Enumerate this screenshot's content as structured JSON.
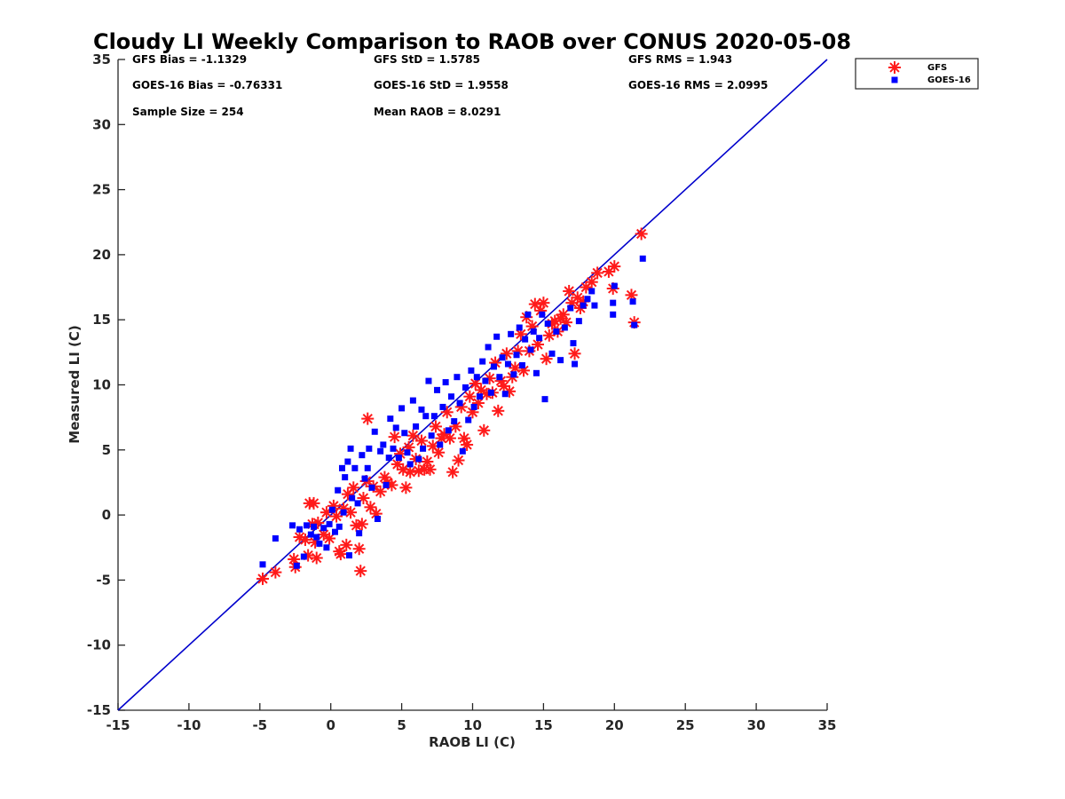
{
  "chart_data": {
    "type": "scatter",
    "title": "Cloudy LI Weekly Comparison to RAOB over CONUS 2020-05-08",
    "xlabel": "RAOB LI (C)",
    "ylabel": "Measured LI (C)",
    "xlim": [
      -15,
      35
    ],
    "ylim": [
      -15,
      35
    ],
    "xticks": [
      -15,
      -10,
      -5,
      0,
      5,
      10,
      15,
      20,
      25,
      30,
      35
    ],
    "yticks": [
      -15,
      -10,
      -5,
      0,
      5,
      10,
      15,
      20,
      25,
      30,
      35
    ],
    "grid": false,
    "legend_position": "outside-top-right",
    "reference_line": {
      "x": [
        -15,
        35
      ],
      "y": [
        -15,
        35
      ],
      "color": "#0000cc"
    },
    "stats": [
      [
        "GFS Bias = -1.1329",
        "GFS StD = 1.5785",
        "GFS RMS = 1.943"
      ],
      [
        "GOES-16 Bias = -0.76331",
        "GOES-16 StD = 1.9558",
        "GOES-16 RMS = 2.0995"
      ],
      [
        "Sample Size = 254",
        "Mean RAOB = 8.0291",
        ""
      ]
    ],
    "series": [
      {
        "name": "GFS",
        "marker": "asterisk",
        "color": "#ff1a1a",
        "points": [
          [
            -4.8,
            -4.9
          ],
          [
            -3.9,
            -4.4
          ],
          [
            -2.6,
            -3.4
          ],
          [
            -2.5,
            -4
          ],
          [
            -2.2,
            -1.7
          ],
          [
            -1.8,
            -1.9
          ],
          [
            -1.6,
            -3.1
          ],
          [
            -1.5,
            0.9
          ],
          [
            -1.3,
            -0.7
          ],
          [
            -1.2,
            0.9
          ],
          [
            -1.1,
            -2.1
          ],
          [
            -1,
            -3.3
          ],
          [
            -0.9,
            -0.6
          ],
          [
            -0.5,
            -1.5
          ],
          [
            -0.3,
            0.2
          ],
          [
            -0.1,
            -1.8
          ],
          [
            0.2,
            0.7
          ],
          [
            0.4,
            -0.1
          ],
          [
            0.6,
            -2.8
          ],
          [
            0.7,
            -3
          ],
          [
            0.9,
            0.5
          ],
          [
            1.1,
            -2.3
          ],
          [
            1.2,
            1.6
          ],
          [
            1.4,
            0.2
          ],
          [
            1.6,
            2.1
          ],
          [
            1.8,
            -0.8
          ],
          [
            2,
            -2.6
          ],
          [
            2.1,
            -4.3
          ],
          [
            2.2,
            -0.7
          ],
          [
            2.3,
            1.3
          ],
          [
            2.5,
            2.6
          ],
          [
            2.6,
            7.4
          ],
          [
            2.8,
            0.6
          ],
          [
            3,
            2.2
          ],
          [
            3.2,
            0.1
          ],
          [
            3.5,
            1.8
          ],
          [
            3.8,
            2.9
          ],
          [
            4,
            2.5
          ],
          [
            4.3,
            2.3
          ],
          [
            4.5,
            6
          ],
          [
            4.7,
            3.9
          ],
          [
            4.9,
            4.7
          ],
          [
            5.1,
            3.5
          ],
          [
            5.3,
            2.1
          ],
          [
            5.5,
            5.2
          ],
          [
            5.6,
            3.3
          ],
          [
            5.8,
            6.1
          ],
          [
            6,
            4.3
          ],
          [
            6.2,
            3.4
          ],
          [
            6.4,
            5.7
          ],
          [
            6.6,
            3.5
          ],
          [
            6.8,
            4.1
          ],
          [
            7,
            3.5
          ],
          [
            7.2,
            5.3
          ],
          [
            7.4,
            6.8
          ],
          [
            7.6,
            4.8
          ],
          [
            7.8,
            5.9
          ],
          [
            8,
            6.2
          ],
          [
            8.2,
            7.9
          ],
          [
            8.4,
            5.9
          ],
          [
            8.6,
            3.3
          ],
          [
            8.8,
            6.8
          ],
          [
            9,
            4.2
          ],
          [
            9.2,
            8.3
          ],
          [
            9.4,
            5.9
          ],
          [
            9.6,
            5.4
          ],
          [
            9.8,
            9.1
          ],
          [
            10,
            7.9
          ],
          [
            10.2,
            10.1
          ],
          [
            10.4,
            8.6
          ],
          [
            10.6,
            9.6
          ],
          [
            10.8,
            6.5
          ],
          [
            11,
            9.3
          ],
          [
            11.2,
            10.5
          ],
          [
            11.4,
            9.4
          ],
          [
            11.6,
            11.7
          ],
          [
            11.8,
            8
          ],
          [
            12,
            10.3
          ],
          [
            12.2,
            9.9
          ],
          [
            12.4,
            12.4
          ],
          [
            12.6,
            9.5
          ],
          [
            12.8,
            10.6
          ],
          [
            13,
            11.3
          ],
          [
            13.2,
            12.6
          ],
          [
            13.4,
            13.9
          ],
          [
            13.6,
            11.1
          ],
          [
            13.8,
            15.2
          ],
          [
            14,
            12.6
          ],
          [
            14.2,
            14.5
          ],
          [
            14.4,
            16.2
          ],
          [
            14.6,
            13.1
          ],
          [
            14.8,
            15.7
          ],
          [
            15,
            16.3
          ],
          [
            15.2,
            12
          ],
          [
            15.4,
            13.8
          ],
          [
            15.6,
            14.7
          ],
          [
            15.8,
            14.9
          ],
          [
            16,
            14.1
          ],
          [
            16.2,
            15.1
          ],
          [
            16.4,
            15.4
          ],
          [
            16.6,
            14.8
          ],
          [
            16.8,
            17.2
          ],
          [
            17,
            16.3
          ],
          [
            17.2,
            12.4
          ],
          [
            17.4,
            16.7
          ],
          [
            17.6,
            15.9
          ],
          [
            17.8,
            16.4
          ],
          [
            18,
            17.5
          ],
          [
            18.4,
            17.9
          ],
          [
            18.8,
            18.6
          ],
          [
            19.6,
            18.7
          ],
          [
            19.9,
            17.4
          ],
          [
            20,
            19.1
          ],
          [
            21.2,
            16.9
          ],
          [
            21.4,
            14.8
          ],
          [
            21.9,
            21.6
          ]
        ]
      },
      {
        "name": "GOES-16",
        "marker": "square",
        "color": "#0000ff",
        "points": [
          [
            -4.8,
            -3.8
          ],
          [
            -3.9,
            -1.8
          ],
          [
            -2.7,
            -0.8
          ],
          [
            -2.4,
            -3.9
          ],
          [
            -2.2,
            -1.1
          ],
          [
            -1.9,
            -3.2
          ],
          [
            -1.7,
            -0.8
          ],
          [
            -1.4,
            -1.5
          ],
          [
            -1.2,
            -0.9
          ],
          [
            -1,
            -1.7
          ],
          [
            -0.8,
            -2.2
          ],
          [
            -0.5,
            -1
          ],
          [
            -0.3,
            -2.5
          ],
          [
            -0.1,
            -0.7
          ],
          [
            0.1,
            0.4
          ],
          [
            0.3,
            -1.3
          ],
          [
            0.5,
            1.9
          ],
          [
            0.6,
            -0.9
          ],
          [
            0.8,
            3.6
          ],
          [
            0.9,
            0.2
          ],
          [
            1,
            2.9
          ],
          [
            1.2,
            4.1
          ],
          [
            1.3,
            -3.1
          ],
          [
            1.4,
            5.1
          ],
          [
            1.5,
            1.3
          ],
          [
            1.7,
            3.6
          ],
          [
            1.9,
            0.9
          ],
          [
            2,
            -1.4
          ],
          [
            2.2,
            4.6
          ],
          [
            2.4,
            2.8
          ],
          [
            2.6,
            3.6
          ],
          [
            2.7,
            5.1
          ],
          [
            2.9,
            2.1
          ],
          [
            3.1,
            6.4
          ],
          [
            3.3,
            -0.3
          ],
          [
            3.5,
            4.9
          ],
          [
            3.7,
            5.4
          ],
          [
            3.9,
            2.3
          ],
          [
            4.1,
            4.4
          ],
          [
            4.2,
            7.4
          ],
          [
            4.4,
            5.1
          ],
          [
            4.6,
            6.7
          ],
          [
            4.8,
            4.4
          ],
          [
            5,
            8.2
          ],
          [
            5.2,
            6.3
          ],
          [
            5.4,
            4.8
          ],
          [
            5.6,
            3.9
          ],
          [
            5.8,
            8.8
          ],
          [
            6,
            6.8
          ],
          [
            6.2,
            4.3
          ],
          [
            6.4,
            8.1
          ],
          [
            6.5,
            5.1
          ],
          [
            6.7,
            7.6
          ],
          [
            6.9,
            10.3
          ],
          [
            7.1,
            6.1
          ],
          [
            7.3,
            7.6
          ],
          [
            7.5,
            9.6
          ],
          [
            7.7,
            5.4
          ],
          [
            7.9,
            8.3
          ],
          [
            8.1,
            10.2
          ],
          [
            8.3,
            6.5
          ],
          [
            8.5,
            9.1
          ],
          [
            8.7,
            7.2
          ],
          [
            8.9,
            10.6
          ],
          [
            9.1,
            8.6
          ],
          [
            9.3,
            4.9
          ],
          [
            9.5,
            9.8
          ],
          [
            9.7,
            7.3
          ],
          [
            9.9,
            11.1
          ],
          [
            10.1,
            8.3
          ],
          [
            10.3,
            10.6
          ],
          [
            10.5,
            9.1
          ],
          [
            10.7,
            11.8
          ],
          [
            10.9,
            10.3
          ],
          [
            11.1,
            12.9
          ],
          [
            11.3,
            9.4
          ],
          [
            11.5,
            11.4
          ],
          [
            11.7,
            13.7
          ],
          [
            11.9,
            10.6
          ],
          [
            12.1,
            12.1
          ],
          [
            12.3,
            9.3
          ],
          [
            12.5,
            11.6
          ],
          [
            12.7,
            13.9
          ],
          [
            12.9,
            10.8
          ],
          [
            13.1,
            12.3
          ],
          [
            13.3,
            14.4
          ],
          [
            13.5,
            11.5
          ],
          [
            13.7,
            13.5
          ],
          [
            13.9,
            15.4
          ],
          [
            14.1,
            12.7
          ],
          [
            14.3,
            14.1
          ],
          [
            14.5,
            10.9
          ],
          [
            14.7,
            13.6
          ],
          [
            14.9,
            15.4
          ],
          [
            15.1,
            8.9
          ],
          [
            15.3,
            14.7
          ],
          [
            15.6,
            12.4
          ],
          [
            15.9,
            14.1
          ],
          [
            16.2,
            11.9
          ],
          [
            16.5,
            14.4
          ],
          [
            16.9,
            15.9
          ],
          [
            17.1,
            13.2
          ],
          [
            17.2,
            11.6
          ],
          [
            17.5,
            14.9
          ],
          [
            17.8,
            16.1
          ],
          [
            18.1,
            16.6
          ],
          [
            18.4,
            17.2
          ],
          [
            18.6,
            16.1
          ],
          [
            19.9,
            15.4
          ],
          [
            19.9,
            16.3
          ],
          [
            20,
            17.6
          ],
          [
            21.3,
            16.4
          ],
          [
            21.4,
            14.6
          ],
          [
            22,
            19.7
          ]
        ]
      }
    ]
  }
}
